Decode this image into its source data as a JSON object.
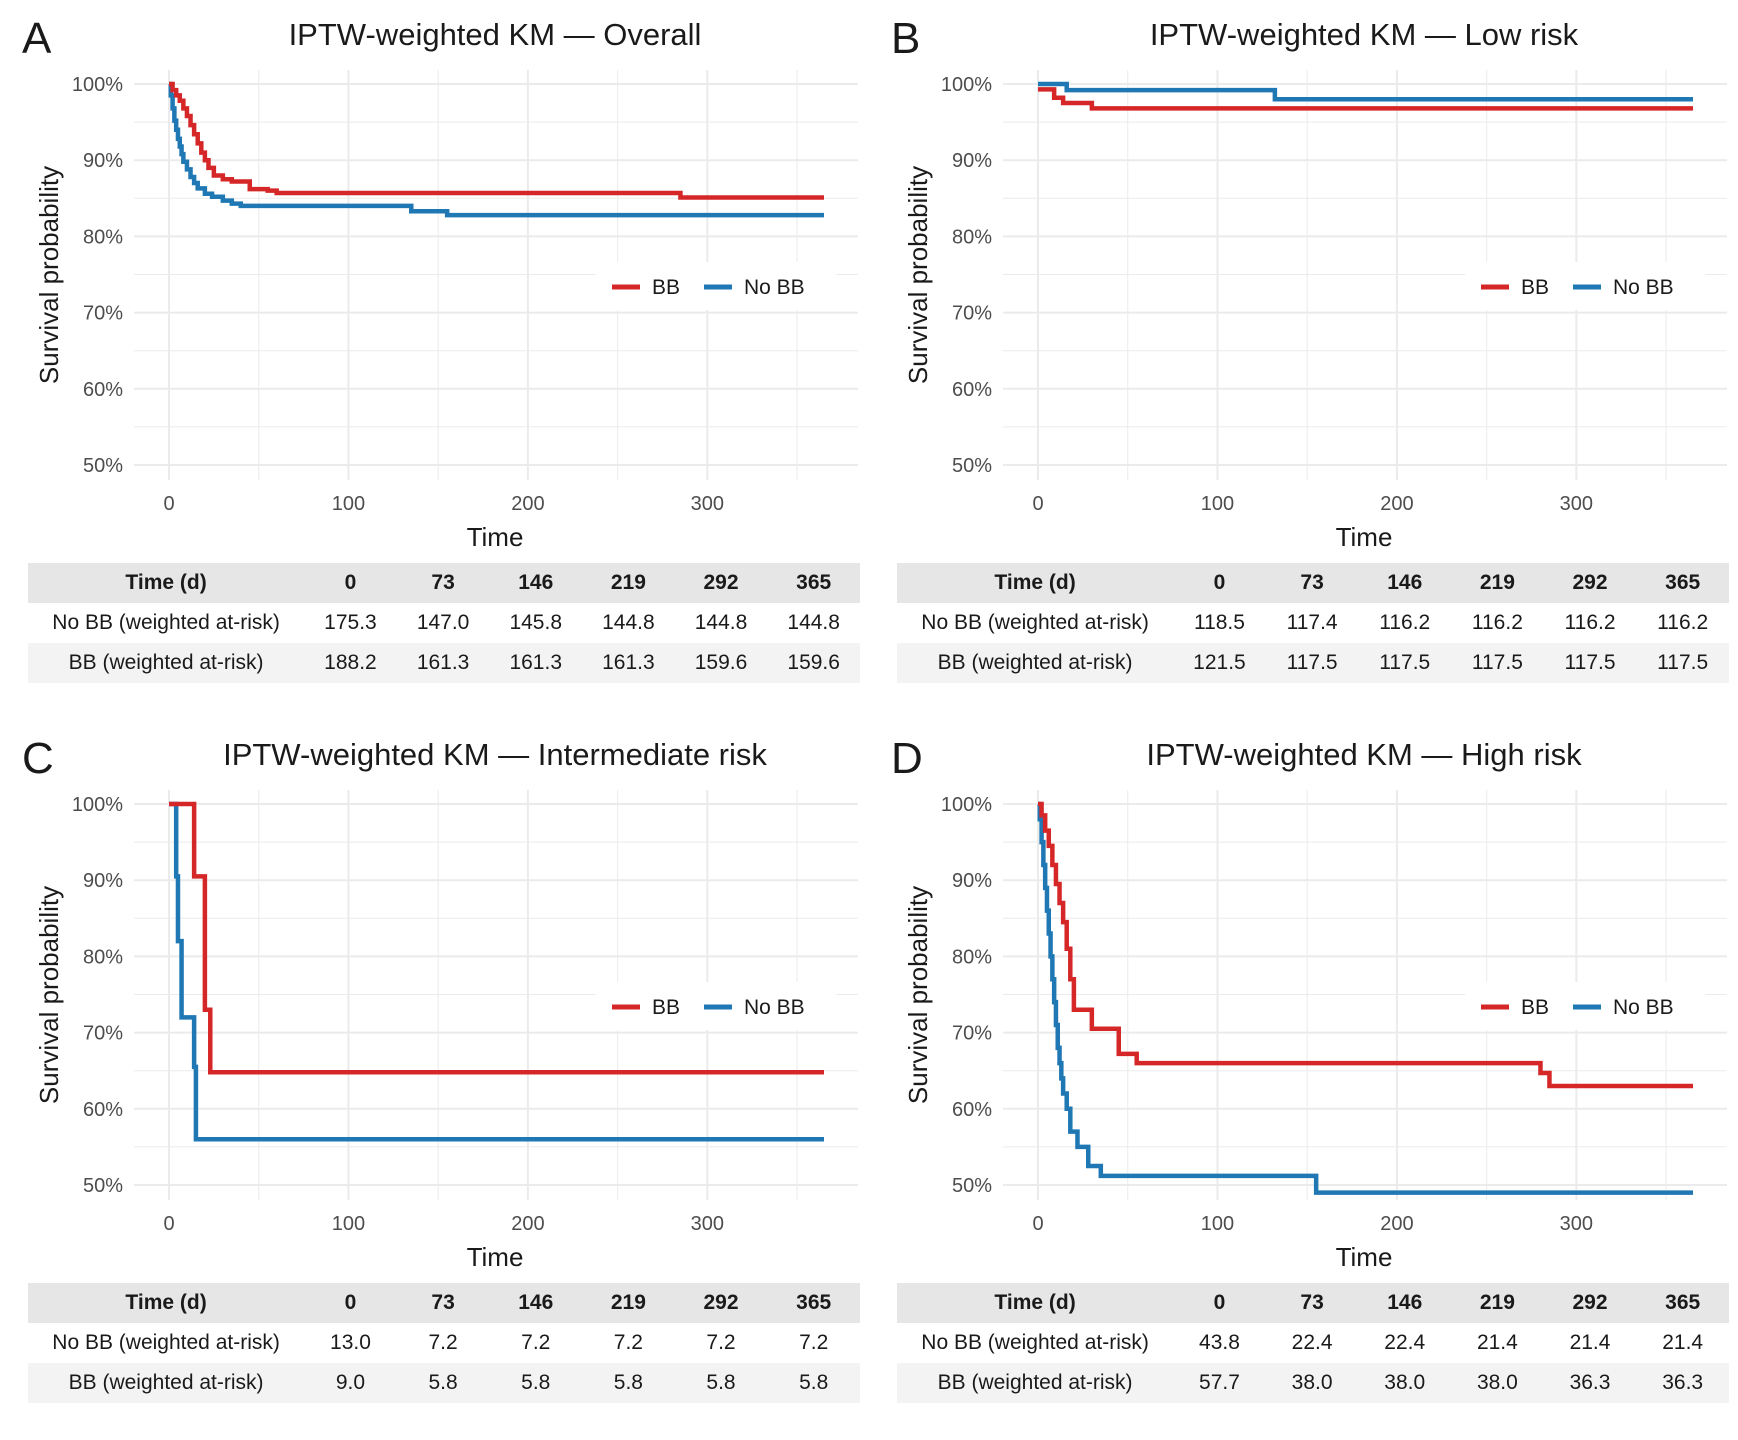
{
  "colors": {
    "BB": "#d62728",
    "No BB": "#1f77b4",
    "grid": "#ebebeb"
  },
  "table_header": [
    "Time (d)",
    "0",
    "73",
    "146",
    "219",
    "292",
    "365"
  ],
  "chart_data": [
    {
      "panel": "A",
      "type": "line",
      "title": "IPTW-weighted KM — Overall",
      "xlabel": "Time",
      "ylabel": "Survival probability",
      "xlim": [
        0,
        365
      ],
      "ylim": [
        0.5,
        1.0
      ],
      "x_ticks": [
        "0",
        "100",
        "200",
        "300"
      ],
      "y_ticks": [
        "50%",
        "60%",
        "70%",
        "80%",
        "90%",
        "100%"
      ],
      "legend": [
        "BB",
        "No BB"
      ],
      "legend_position": "right",
      "grid": true,
      "series": [
        {
          "name": "BB",
          "x": [
            0,
            2,
            4,
            6,
            8,
            10,
            12,
            14,
            16,
            18,
            20,
            22,
            25,
            30,
            35,
            45,
            55,
            60,
            280,
            285,
            365
          ],
          "y": [
            1.0,
            0.992,
            0.985,
            0.978,
            0.968,
            0.958,
            0.946,
            0.934,
            0.922,
            0.91,
            0.9,
            0.89,
            0.88,
            0.875,
            0.872,
            0.862,
            0.86,
            0.857,
            0.857,
            0.851,
            0.851
          ]
        },
        {
          "name": "No BB",
          "x": [
            0,
            1,
            2,
            3,
            4,
            5,
            6,
            7,
            8,
            10,
            12,
            14,
            16,
            20,
            24,
            30,
            35,
            40,
            135,
            155,
            365
          ],
          "y": [
            1.0,
            0.985,
            0.968,
            0.952,
            0.94,
            0.928,
            0.918,
            0.908,
            0.898,
            0.888,
            0.878,
            0.87,
            0.863,
            0.856,
            0.852,
            0.847,
            0.843,
            0.84,
            0.833,
            0.828,
            0.828
          ]
        }
      ],
      "risk_table": [
        {
          "label": "No BB (weighted at-risk)",
          "values": [
            "175.3",
            "147.0",
            "145.8",
            "144.8",
            "144.8",
            "144.8"
          ]
        },
        {
          "label": "BB (weighted at-risk)",
          "values": [
            "188.2",
            "161.3",
            "161.3",
            "161.3",
            "159.6",
            "159.6"
          ]
        }
      ]
    },
    {
      "panel": "B",
      "type": "line",
      "title": "IPTW-weighted KM — Low risk",
      "xlabel": "Time",
      "ylabel": "Survival probability",
      "xlim": [
        0,
        365
      ],
      "ylim": [
        0.5,
        1.0
      ],
      "x_ticks": [
        "0",
        "100",
        "200",
        "300"
      ],
      "y_ticks": [
        "50%",
        "60%",
        "70%",
        "80%",
        "90%",
        "100%"
      ],
      "legend": [
        "BB",
        "No BB"
      ],
      "legend_position": "right",
      "grid": true,
      "series": [
        {
          "name": "BB",
          "x": [
            0,
            6,
            9,
            14,
            30,
            365
          ],
          "y": [
            0.993,
            0.993,
            0.982,
            0.975,
            0.968,
            0.968
          ]
        },
        {
          "name": "No BB",
          "x": [
            0,
            16,
            132,
            365
          ],
          "y": [
            1.0,
            0.992,
            0.98,
            0.98
          ]
        }
      ],
      "risk_table": [
        {
          "label": "No BB (weighted at-risk)",
          "values": [
            "118.5",
            "117.4",
            "116.2",
            "116.2",
            "116.2",
            "116.2"
          ]
        },
        {
          "label": "BB (weighted at-risk)",
          "values": [
            "121.5",
            "117.5",
            "117.5",
            "117.5",
            "117.5",
            "117.5"
          ]
        }
      ]
    },
    {
      "panel": "C",
      "type": "line",
      "title": "IPTW-weighted KM — Intermediate risk",
      "xlabel": "Time",
      "ylabel": "Survival probability",
      "xlim": [
        0,
        365
      ],
      "ylim": [
        0.5,
        1.0
      ],
      "x_ticks": [
        "0",
        "100",
        "200",
        "300"
      ],
      "y_ticks": [
        "50%",
        "60%",
        "70%",
        "80%",
        "90%",
        "100%"
      ],
      "legend": [
        "BB",
        "No BB"
      ],
      "legend_position": "right",
      "grid": true,
      "series": [
        {
          "name": "BB",
          "x": [
            0,
            14,
            20,
            23,
            365
          ],
          "y": [
            1.0,
            0.905,
            0.73,
            0.648,
            0.648
          ]
        },
        {
          "name": "No BB",
          "x": [
            0,
            4,
            5,
            7,
            14,
            15,
            365
          ],
          "y": [
            1.0,
            0.905,
            0.82,
            0.72,
            0.655,
            0.56,
            0.56
          ]
        }
      ],
      "risk_table": [
        {
          "label": "No BB (weighted at-risk)",
          "values": [
            "13.0",
            "7.2",
            "7.2",
            "7.2",
            "7.2",
            "7.2"
          ]
        },
        {
          "label": "BB (weighted at-risk)",
          "values": [
            "9.0",
            "5.8",
            "5.8",
            "5.8",
            "5.8",
            "5.8"
          ]
        }
      ]
    },
    {
      "panel": "D",
      "type": "line",
      "title": "IPTW-weighted KM — High risk",
      "xlabel": "Time",
      "ylabel": "Survival probability",
      "xlim": [
        0,
        365
      ],
      "ylim": [
        0.5,
        1.0
      ],
      "x_ticks": [
        "0",
        "100",
        "200",
        "300"
      ],
      "y_ticks": [
        "50%",
        "60%",
        "70%",
        "80%",
        "90%",
        "100%"
      ],
      "legend": [
        "BB",
        "No BB"
      ],
      "legend_position": "right",
      "grid": true,
      "series": [
        {
          "name": "BB",
          "x": [
            0,
            2,
            4,
            6,
            8,
            10,
            12,
            14,
            16,
            18,
            20,
            30,
            45,
            55,
            280,
            285,
            365
          ],
          "y": [
            1.0,
            0.985,
            0.965,
            0.945,
            0.92,
            0.895,
            0.87,
            0.845,
            0.81,
            0.77,
            0.73,
            0.705,
            0.672,
            0.66,
            0.647,
            0.63,
            0.63
          ]
        },
        {
          "name": "No BB",
          "x": [
            0,
            1,
            2,
            3,
            4,
            5,
            6,
            7,
            8,
            9,
            10,
            11,
            12,
            13,
            14,
            16,
            18,
            22,
            28,
            35,
            155,
            365
          ],
          "y": [
            1.0,
            0.98,
            0.95,
            0.92,
            0.89,
            0.86,
            0.83,
            0.8,
            0.77,
            0.74,
            0.71,
            0.68,
            0.66,
            0.64,
            0.62,
            0.6,
            0.57,
            0.55,
            0.525,
            0.512,
            0.49,
            0.49
          ]
        }
      ],
      "risk_table": [
        {
          "label": "No BB (weighted at-risk)",
          "values": [
            "43.8",
            "22.4",
            "22.4",
            "21.4",
            "21.4",
            "21.4"
          ]
        },
        {
          "label": "BB (weighted at-risk)",
          "values": [
            "57.7",
            "38.0",
            "38.0",
            "38.0",
            "36.3",
            "36.3"
          ]
        }
      ]
    }
  ]
}
